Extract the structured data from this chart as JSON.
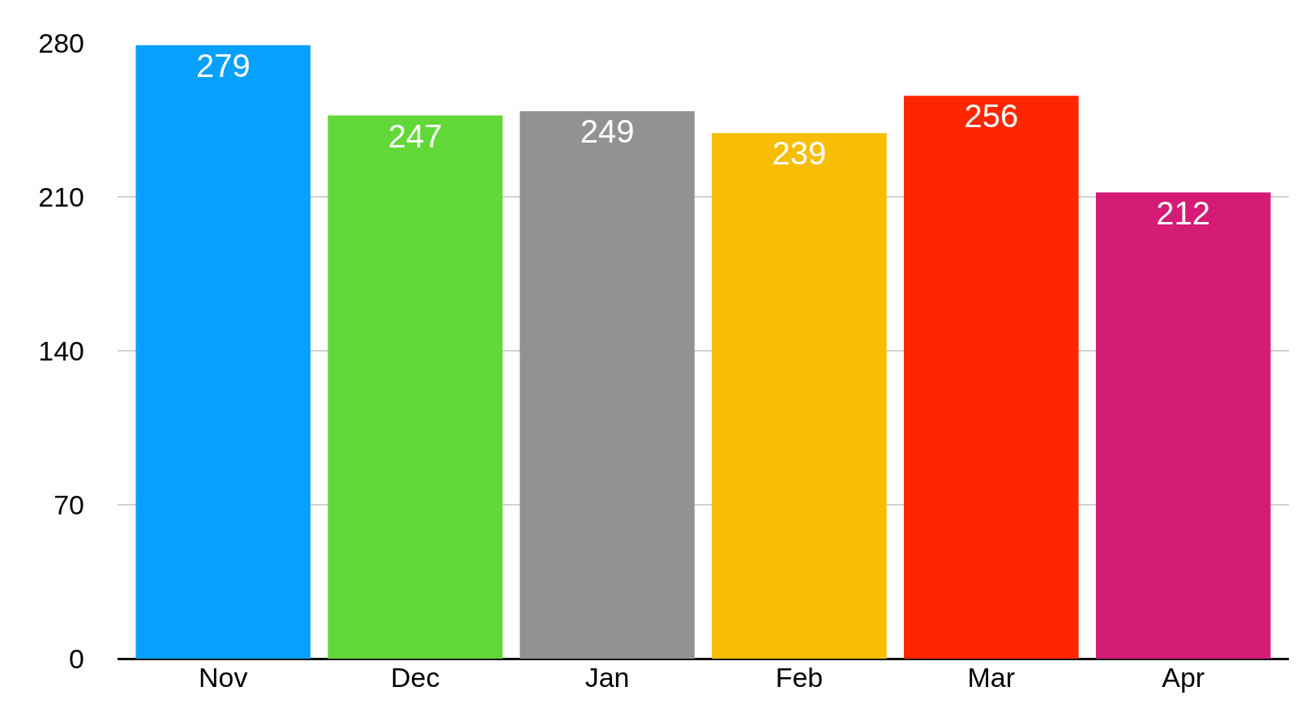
{
  "chart_data": {
    "type": "bar",
    "categories": [
      "Nov",
      "Dec",
      "Jan",
      "Feb",
      "Mar",
      "Apr"
    ],
    "values": [
      279,
      247,
      249,
      239,
      256,
      212
    ],
    "colors": [
      "#06a0ff",
      "#62d838",
      "#929292",
      "#f8be04",
      "#ff2600",
      "#d41b76"
    ],
    "ylim": [
      0,
      280
    ],
    "yticks": [
      0,
      70,
      140,
      210,
      280
    ],
    "grid": "y",
    "data_labels": true
  }
}
